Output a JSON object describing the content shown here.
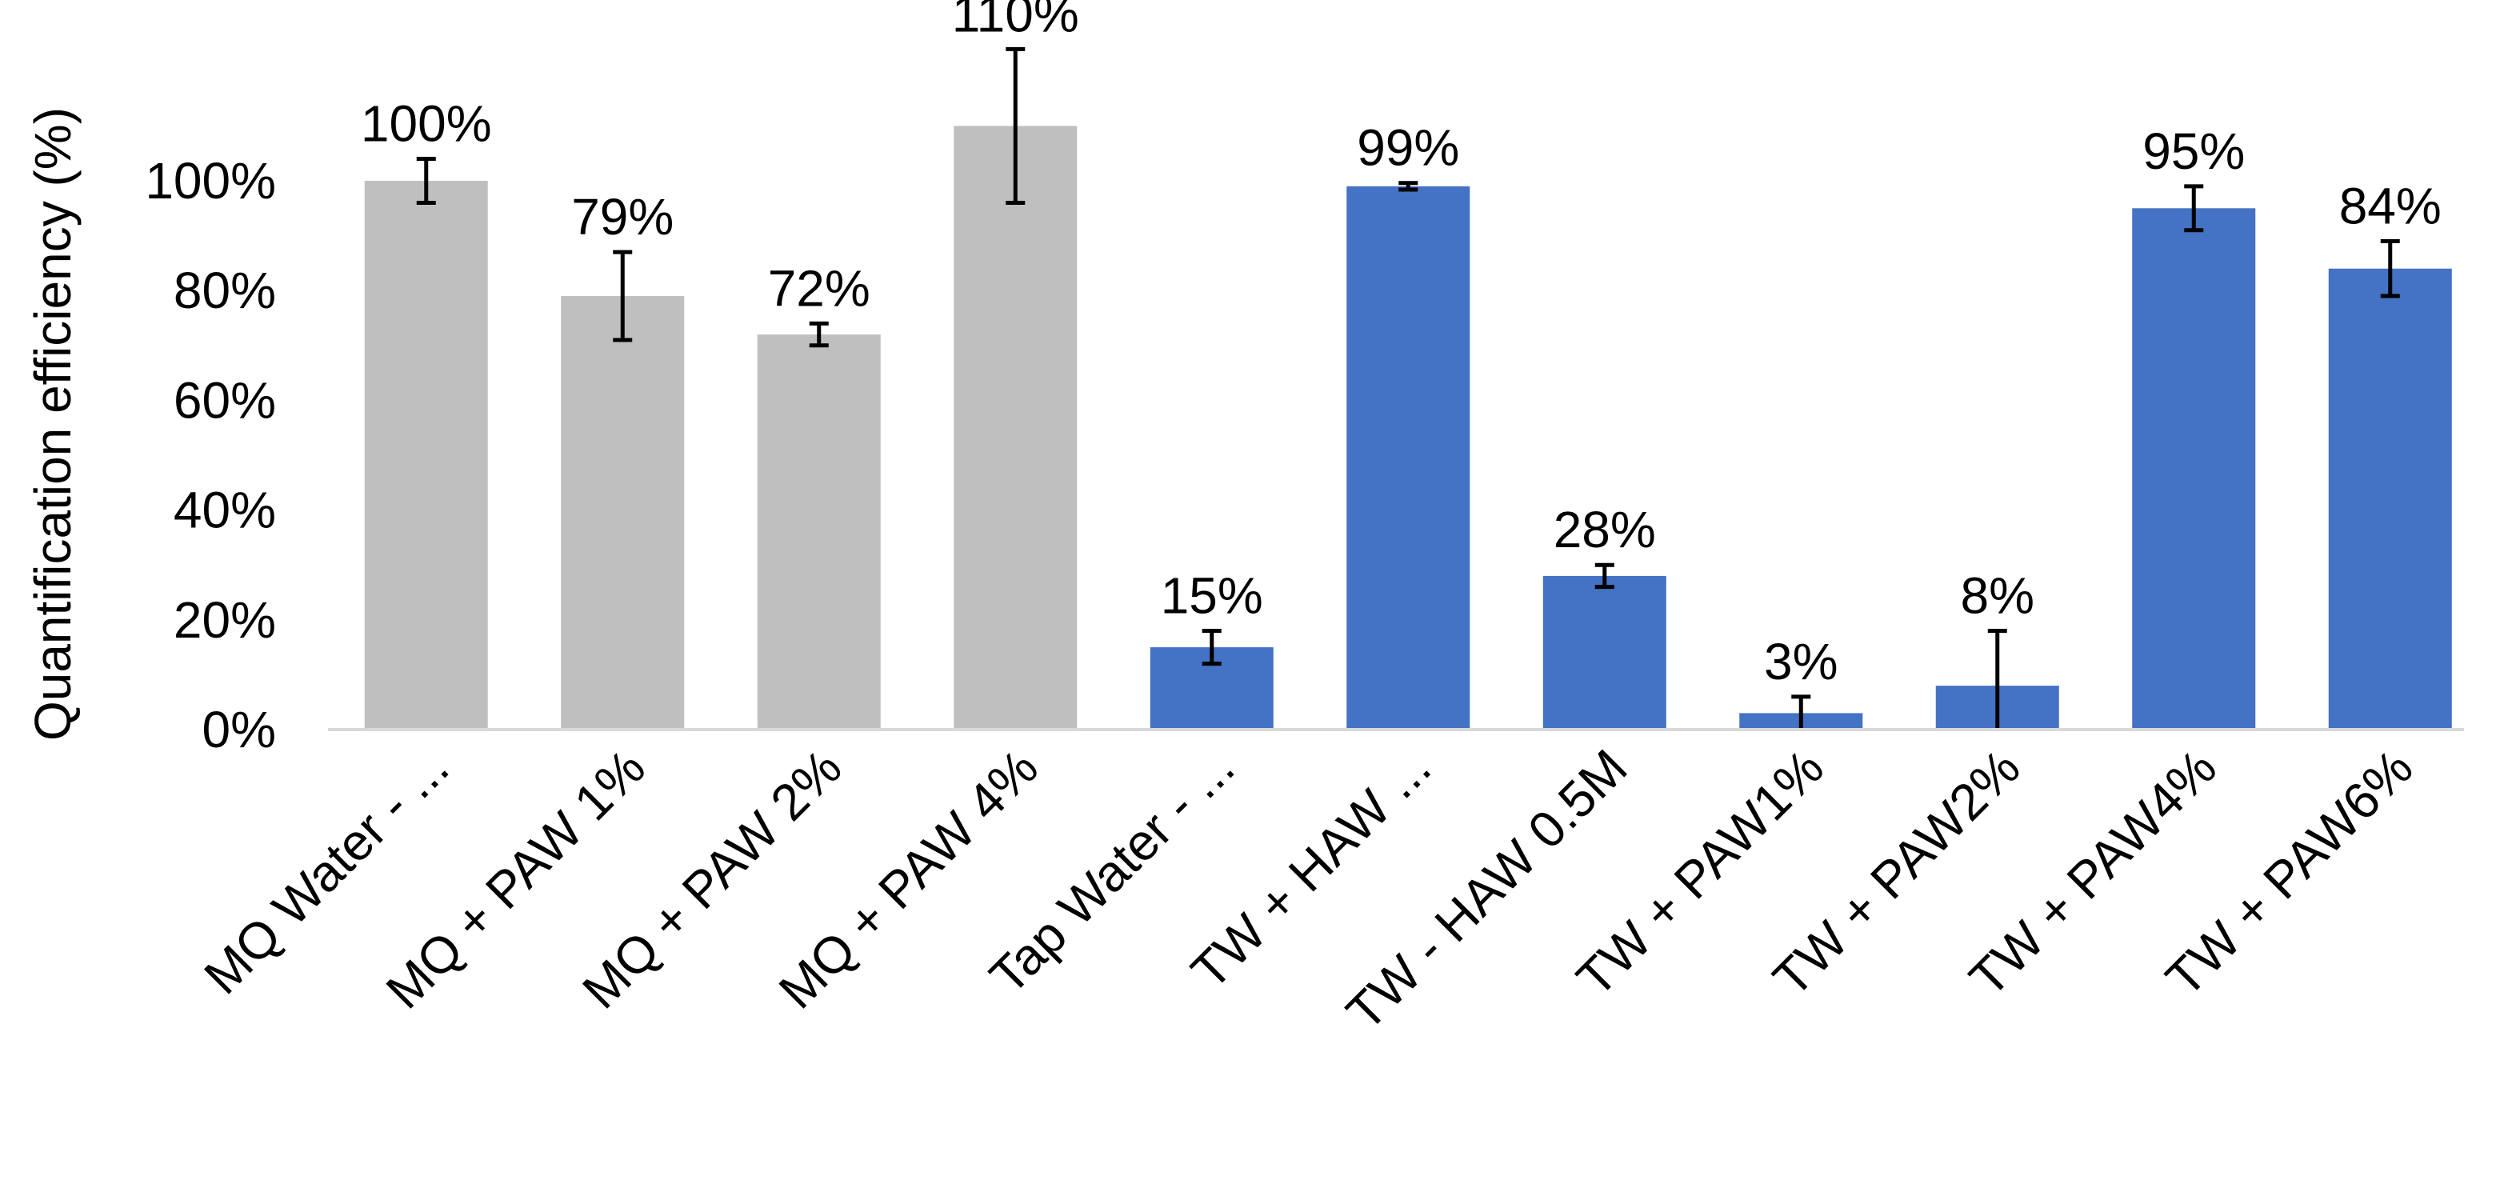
{
  "chart_data": {
    "type": "bar",
    "ylabel": "Quantification efficiency (%)",
    "xlabel": "",
    "ylim": [
      0,
      100
    ],
    "y_ticks": [
      "0%",
      "20%",
      "40%",
      "60%",
      "80%",
      "100%"
    ],
    "grid": false,
    "legend": "none",
    "categories": [
      "MQ Water - ...",
      "MQ + PAW 1%",
      "MQ + PAW 2%",
      "MQ + PAW 4%",
      "Tap Water - ...",
      "TW + HAW ...",
      "TW - HAW 0.5M",
      "TW + PAW1%",
      "TW + PAW2%",
      "TW + PAW4%",
      "TW + PAW6%"
    ],
    "values": [
      100,
      79,
      72,
      110,
      15,
      99,
      28,
      3,
      8,
      95,
      84
    ],
    "data_labels": [
      "100%",
      "79%",
      "72%",
      "110%",
      "15%",
      "99%",
      "28%",
      "3%",
      "8%",
      "95%",
      "84%"
    ],
    "error": [
      4,
      8,
      2,
      14,
      3,
      0.6,
      2,
      3,
      10,
      4,
      5
    ],
    "bar_colors": [
      "#bfbfbf",
      "#bfbfbf",
      "#bfbfbf",
      "#bfbfbf",
      "#4472c4",
      "#4472c4",
      "#4472c4",
      "#4472c4",
      "#4472c4",
      "#4472c4",
      "#4472c4"
    ]
  }
}
